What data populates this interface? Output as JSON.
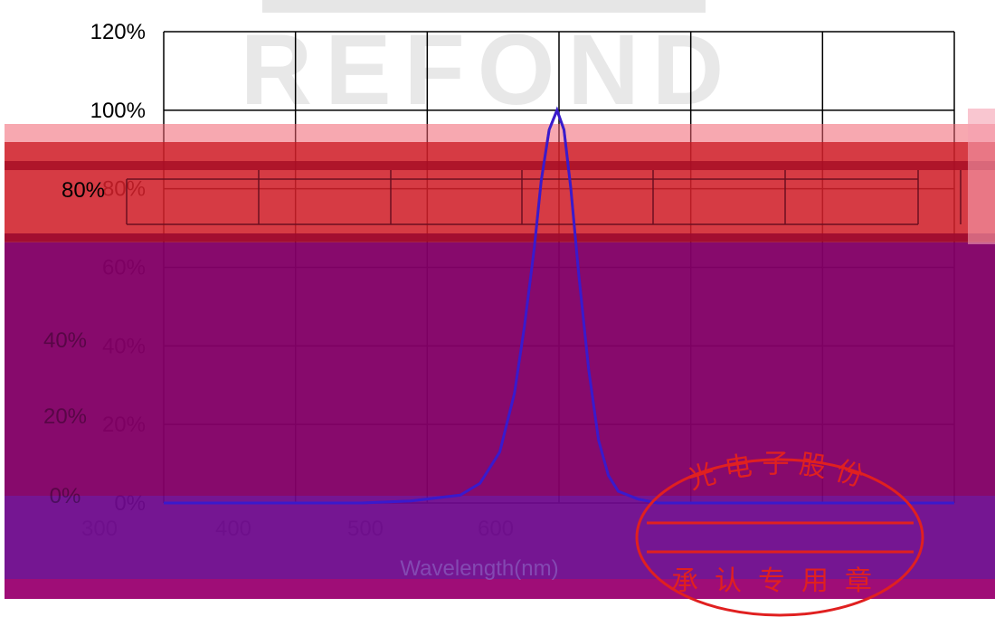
{
  "chart_data": {
    "type": "line",
    "title": "",
    "xlabel": "Wavelength(nm)",
    "ylabel": "",
    "watermark": "REFOND",
    "x_ticks": [
      "300",
      "400",
      "500",
      "600"
    ],
    "y_ticks": [
      "0%",
      "20%",
      "40%",
      "60%",
      "80%",
      "100%",
      "120%"
    ],
    "xlim": [
      200,
      1000
    ],
    "ylim": [
      0,
      1.2
    ],
    "grid": true,
    "series": [
      {
        "color": "#4a78b8",
        "x": [
          200,
          300,
          400,
          450,
          500,
          520,
          540,
          555,
          565,
          575,
          582,
          590,
          598,
          605,
          612,
          620,
          630,
          640,
          650,
          660,
          680,
          700,
          800,
          1000
        ],
        "y": [
          0.0,
          0.0,
          0.0,
          0.005,
          0.02,
          0.05,
          0.13,
          0.28,
          0.45,
          0.65,
          0.82,
          0.95,
          1.0,
          0.95,
          0.8,
          0.58,
          0.34,
          0.16,
          0.07,
          0.03,
          0.01,
          0.0,
          0.0,
          0.0
        ]
      }
    ],
    "overlay_colors": {
      "red_band": "#d0202a",
      "red_band_light": "#f06070",
      "purple_band": "#820066",
      "bottom_strip": "#9a0070",
      "stamp_red": "#e02020"
    },
    "stamp_text": {
      "top_arc": "光电子股份",
      "bottom": "承认专用章"
    }
  }
}
